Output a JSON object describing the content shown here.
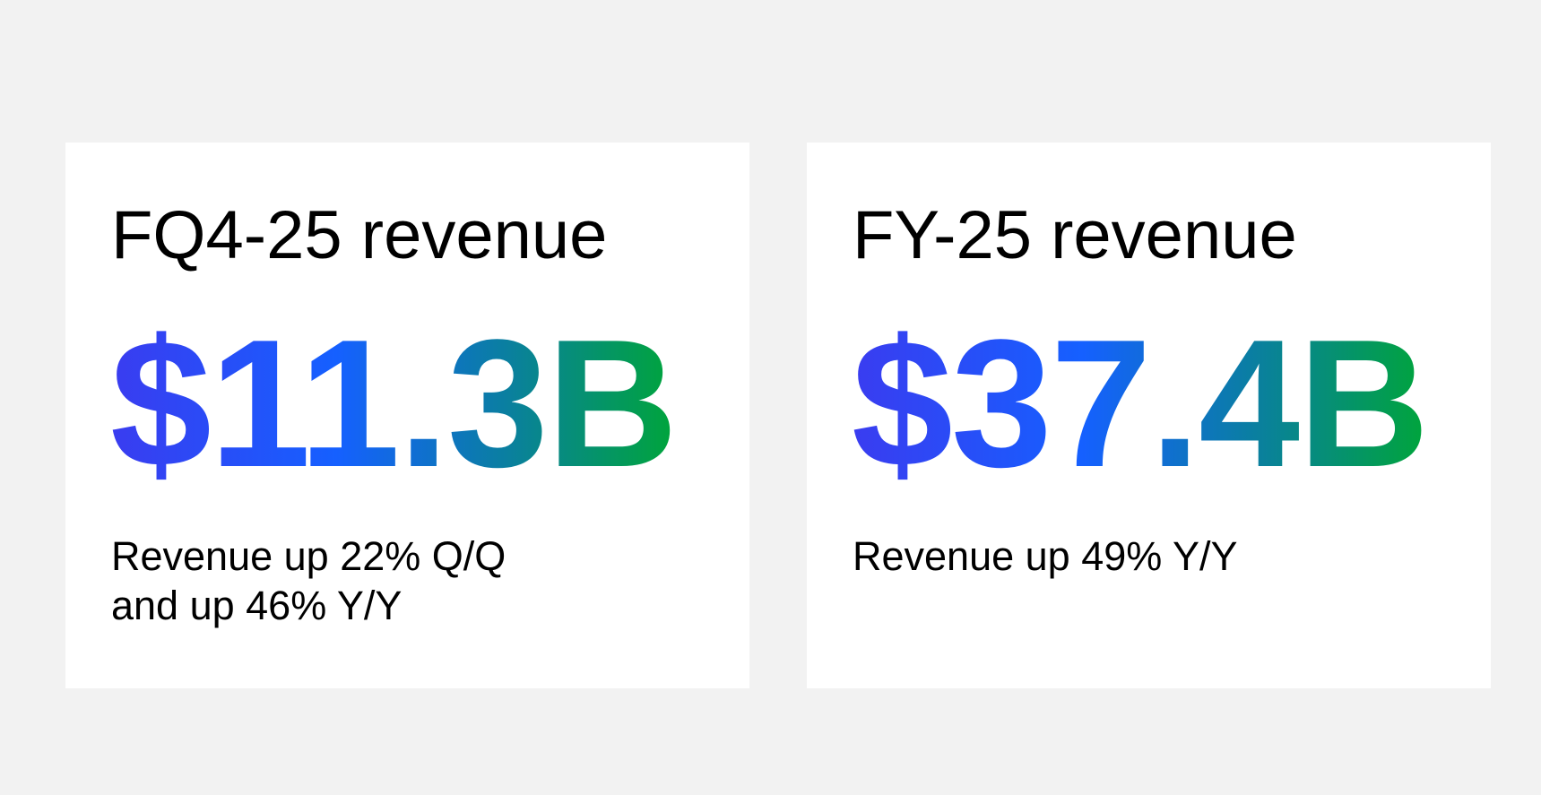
{
  "colors": {
    "page_background": "#f2f2f2",
    "card_background": "#ffffff",
    "text": "#000000",
    "gradient_start": "#3a3cf0",
    "gradient_mid_blue": "#1560ff",
    "gradient_teal": "#0a7fa0",
    "gradient_end": "#00a53a"
  },
  "cards": [
    {
      "title": "FQ4-25 revenue",
      "value": "$11.3B",
      "note_lines": [
        "Revenue up 22% Q/Q",
        "and up 46% Y/Y"
      ]
    },
    {
      "title": "FY-25 revenue",
      "value": "$37.4B",
      "note_lines": [
        "Revenue up 49% Y/Y"
      ]
    }
  ]
}
